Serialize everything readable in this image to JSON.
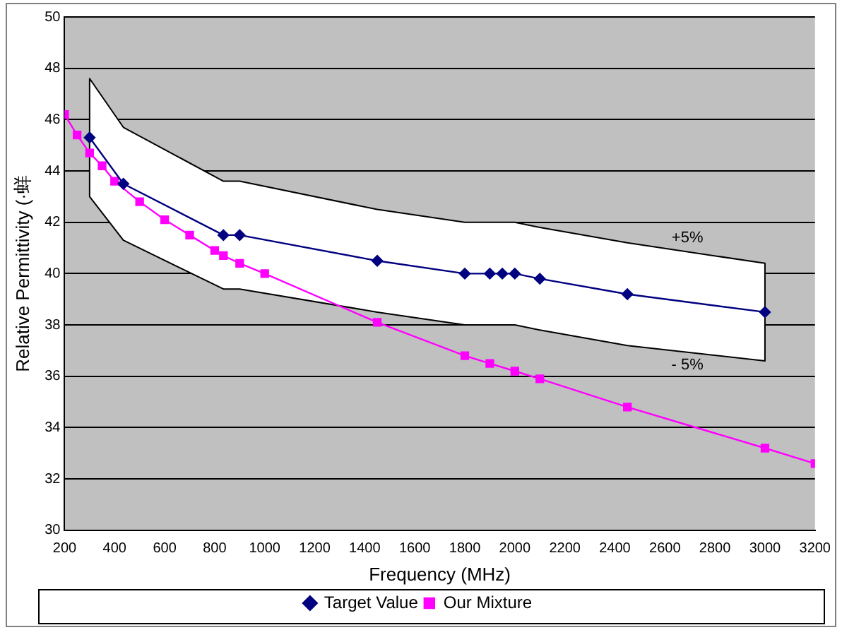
{
  "chart_data": {
    "type": "line",
    "xlabel": "Frequency (MHz)",
    "ylabel": "Relative Permittivity (·蛘",
    "xlim": [
      200,
      3200
    ],
    "xticks": [
      200,
      400,
      600,
      800,
      1000,
      1200,
      1400,
      1600,
      1800,
      2000,
      2200,
      2400,
      2600,
      2800,
      3000,
      3200
    ],
    "ylim": [
      30,
      50
    ],
    "yticks": [
      30,
      32,
      34,
      36,
      38,
      40,
      42,
      44,
      46,
      48,
      50
    ],
    "grid": "y",
    "legend": "bottom",
    "series": [
      {
        "name": "Target Value",
        "color": "#000080",
        "marker": "diamond",
        "x": [
          300,
          435,
          835,
          900,
          1450,
          1800,
          1900,
          1950,
          2000,
          2100,
          2450,
          3000
        ],
        "values": [
          45.3,
          43.5,
          41.5,
          41.5,
          40.5,
          40.0,
          40.0,
          40.0,
          40.0,
          39.8,
          39.2,
          38.5
        ],
        "lower": [
          43.0,
          41.3,
          39.4,
          39.4,
          38.5,
          38.0,
          38.0,
          38.0,
          38.0,
          37.8,
          37.2,
          36.6
        ],
        "upper": [
          47.6,
          45.7,
          43.6,
          43.6,
          42.5,
          42.0,
          42.0,
          42.0,
          42.0,
          41.8,
          41.2,
          40.4
        ]
      },
      {
        "name": "Our Mixture",
        "color": "#ff00ff",
        "marker": "square",
        "x": [
          200,
          250,
          300,
          350,
          400,
          500,
          600,
          700,
          800,
          835,
          900,
          1000,
          1450,
          1800,
          1900,
          2000,
          2100,
          2450,
          3000,
          3200
        ],
        "values": [
          46.2,
          45.4,
          44.7,
          44.2,
          43.6,
          42.8,
          42.1,
          41.5,
          40.9,
          40.7,
          40.4,
          40.0,
          38.1,
          36.8,
          36.5,
          36.2,
          35.9,
          34.8,
          33.2,
          32.6
        ]
      }
    ],
    "annotations": [
      "+5%",
      "- 5%"
    ]
  }
}
